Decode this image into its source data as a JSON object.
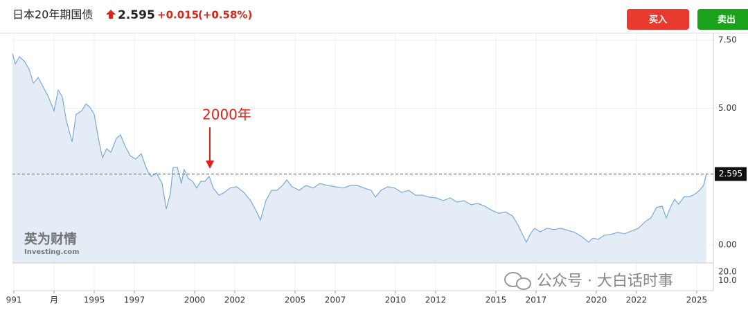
{
  "quote": {
    "name": "日本20年期国债",
    "change": "+0.015",
    "change_pct": "(+0.58%)"
  },
  "buttons": {
    "buy": "买入",
    "sell": "卖出"
  },
  "watermarks": {
    "brand_cn": "英为财情",
    "brand_en": "Investing.com",
    "wechat": "公众号 · 大白话时事"
  },
  "chart_data": {
    "type": "area",
    "annotation": "2000年",
    "reference_line": 2.595,
    "color": "#7aa9d4",
    "fill": "#e4edf6",
    "grid": true,
    "xlim": [
      1990.93,
      2025.83
    ],
    "ylim": [
      -0.66,
      7.75
    ],
    "yticks": [
      {
        "value": 7.5,
        "label": "7.50"
      },
      {
        "value": 5,
        "label": "5.00"
      },
      {
        "value": 0,
        "label": "0.00"
      }
    ],
    "volume_ylim": [
      0,
      29
    ],
    "volume_yticks": [
      {
        "value": 20,
        "label": "20.0"
      },
      {
        "value": 10,
        "label": "10.0"
      }
    ],
    "xticks": [
      {
        "value": 1991,
        "label": "991"
      },
      {
        "value": 1993,
        "label": "月"
      },
      1995,
      1997,
      2000,
      2002,
      2005,
      2007,
      2010,
      2012,
      2015,
      2017,
      2020,
      2022,
      2025
    ],
    "x": [
      1990.93,
      1991.07,
      1991.28,
      1991.52,
      1991.76,
      1991.97,
      1992.21,
      1992.45,
      1992.72,
      1993.0,
      1993.21,
      1993.41,
      1993.62,
      1993.9,
      1994.1,
      1994.38,
      1994.59,
      1994.79,
      1995.0,
      1995.21,
      1995.41,
      1995.62,
      1995.83,
      1996.1,
      1996.31,
      1996.52,
      1996.79,
      1997.07,
      1997.34,
      1997.62,
      1997.83,
      1998.1,
      1998.38,
      1998.59,
      1998.79,
      1998.93,
      1999.14,
      1999.34,
      1999.48,
      1999.69,
      1999.9,
      2000.1,
      2000.31,
      2000.52,
      2000.72,
      2000.93,
      2001.21,
      2001.48,
      2001.76,
      2002.1,
      2002.45,
      2002.79,
      2003.07,
      2003.28,
      2003.55,
      2003.83,
      2004.1,
      2004.38,
      2004.59,
      2004.86,
      2005.21,
      2005.55,
      2005.9,
      2006.24,
      2006.59,
      2007.0,
      2007.41,
      2007.76,
      2008.1,
      2008.45,
      2008.79,
      2009.0,
      2009.28,
      2009.62,
      2009.97,
      2010.31,
      2010.66,
      2011.0,
      2011.34,
      2011.69,
      2012.03,
      2012.38,
      2012.72,
      2013.07,
      2013.41,
      2013.76,
      2014.1,
      2014.45,
      2014.79,
      2015.14,
      2015.48,
      2015.83,
      2016.1,
      2016.31,
      2016.52,
      2016.72,
      2016.93,
      2017.21,
      2017.55,
      2017.9,
      2018.24,
      2018.59,
      2018.93,
      2019.28,
      2019.62,
      2019.83,
      2020.1,
      2020.38,
      2020.72,
      2021.07,
      2021.41,
      2021.76,
      2022.1,
      2022.45,
      2022.72,
      2023.0,
      2023.28,
      2023.48,
      2023.69,
      2023.9,
      2024.1,
      2024.38,
      2024.66,
      2024.93,
      2025.14,
      2025.34,
      2025.48
    ],
    "values": [
      7.0,
      6.63,
      6.89,
      6.73,
      6.43,
      5.92,
      6.13,
      5.8,
      5.42,
      4.91,
      5.67,
      5.42,
      4.53,
      3.77,
      4.78,
      4.91,
      5.16,
      5.04,
      4.78,
      3.9,
      3.19,
      3.52,
      3.39,
      3.9,
      4.03,
      3.65,
      3.27,
      3.14,
      3.34,
      2.76,
      2.51,
      2.63,
      2.25,
      1.32,
      1.87,
      2.84,
      2.84,
      2.25,
      2.76,
      2.43,
      2.33,
      2.08,
      2.33,
      2.33,
      2.51,
      2.08,
      1.82,
      1.92,
      2.08,
      2.13,
      1.92,
      1.62,
      1.24,
      0.91,
      1.62,
      2.0,
      2.0,
      2.18,
      2.38,
      2.13,
      2.0,
      2.18,
      2.08,
      2.25,
      2.18,
      2.13,
      2.08,
      2.18,
      2.18,
      2.08,
      2.0,
      1.75,
      2.0,
      2.13,
      2.08,
      1.92,
      2.0,
      1.82,
      1.82,
      1.75,
      1.72,
      1.62,
      1.72,
      1.57,
      1.62,
      1.47,
      1.52,
      1.42,
      1.27,
      1.16,
      1.21,
      1.06,
      0.73,
      0.41,
      0.1,
      0.41,
      0.61,
      0.48,
      0.61,
      0.56,
      0.61,
      0.53,
      0.46,
      0.3,
      0.1,
      0.25,
      0.2,
      0.35,
      0.38,
      0.46,
      0.41,
      0.51,
      0.61,
      0.86,
      0.99,
      1.37,
      1.42,
      0.99,
      1.37,
      1.67,
      1.49,
      1.77,
      1.77,
      1.87,
      2.0,
      2.18,
      2.595
    ]
  }
}
